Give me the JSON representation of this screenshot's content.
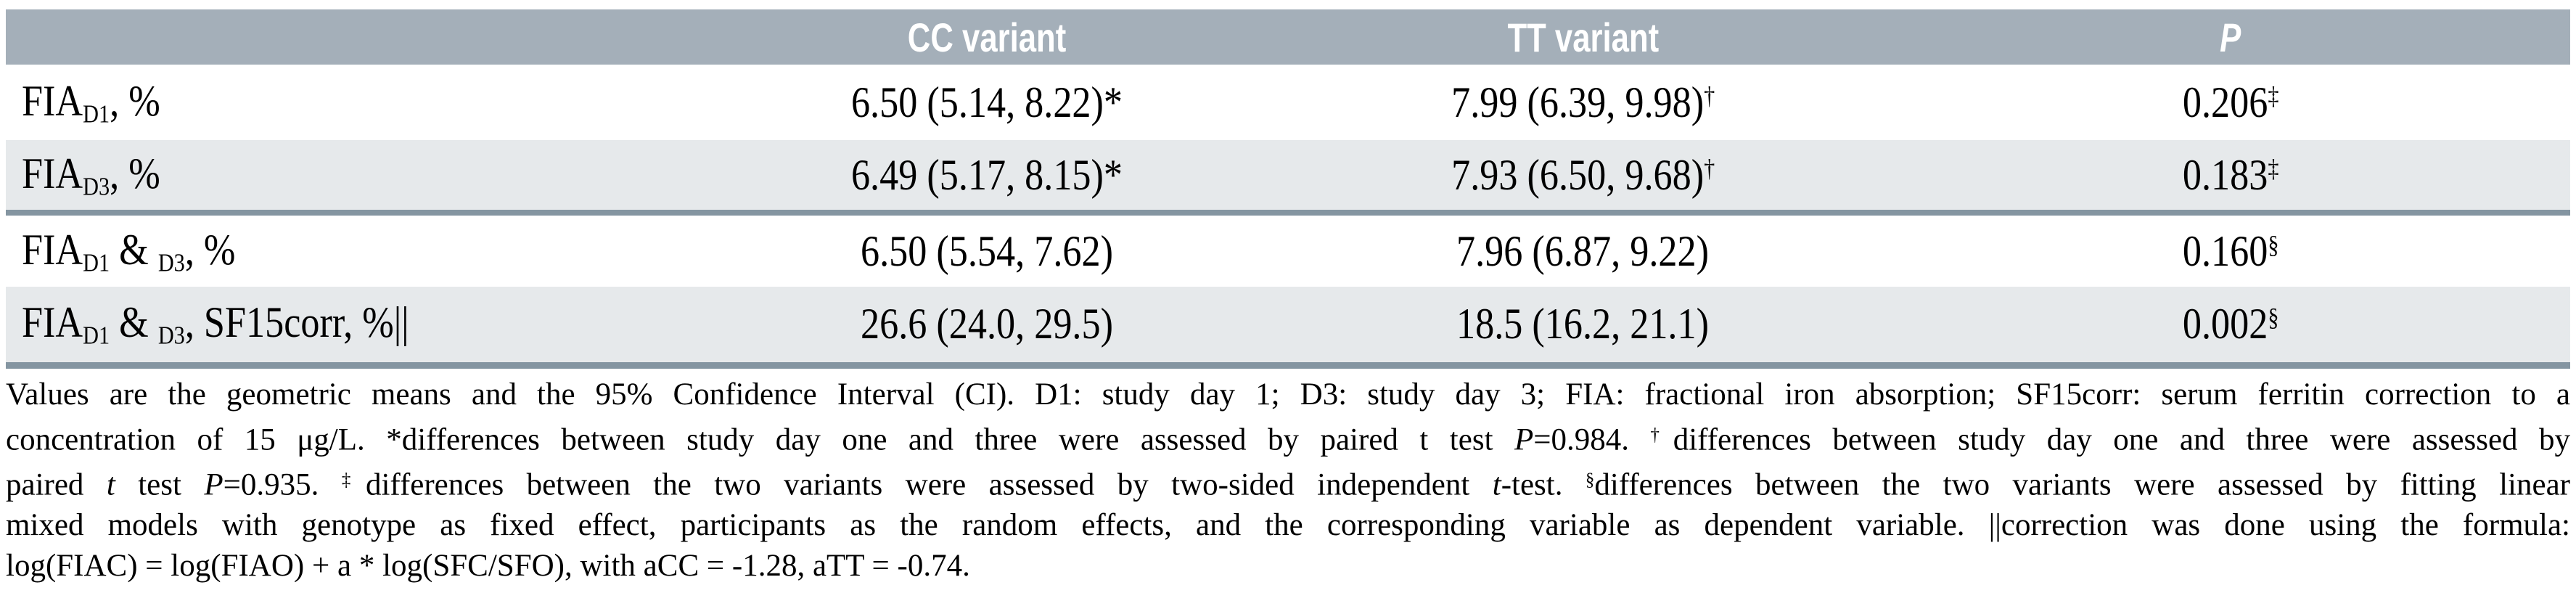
{
  "colors": {
    "header_bg": "#a4afb9",
    "row_alt_bg": "#e6e9eb",
    "separator_rule": "#8495a1",
    "header_text": "#ffffff",
    "body_text": "#000000"
  },
  "table": {
    "header": {
      "col0": "",
      "col1": "CC variant",
      "col2": "TT variant",
      "col3": "P"
    },
    "rows": [
      {
        "label": [
          {
            "t": "FIA"
          },
          {
            "t": "D1",
            "s": "sub"
          },
          {
            "t": ", %"
          }
        ],
        "cc": [
          {
            "t": "6.50 (5.14, 8.22)*"
          }
        ],
        "tt": [
          {
            "t": "7.99 (6.39, 9.98)"
          },
          {
            "t": "†",
            "s": "sup"
          }
        ],
        "p": [
          {
            "t": "0.206"
          },
          {
            "t": "‡",
            "s": "sup"
          }
        ]
      },
      {
        "label": [
          {
            "t": "FIA"
          },
          {
            "t": "D3",
            "s": "sub"
          },
          {
            "t": ", %"
          }
        ],
        "cc": [
          {
            "t": "6.49 (5.17, 8.15)*"
          }
        ],
        "tt": [
          {
            "t": "7.93 (6.50, 9.68)"
          },
          {
            "t": "†",
            "s": "sup"
          }
        ],
        "p": [
          {
            "t": "0.183"
          },
          {
            "t": "‡",
            "s": "sup"
          }
        ]
      },
      {
        "label": [
          {
            "t": "FIA"
          },
          {
            "t": "D1",
            "s": "sub"
          },
          {
            "t": " & "
          },
          {
            "t": "D3",
            "s": "sub"
          },
          {
            "t": ", %"
          }
        ],
        "cc": [
          {
            "t": "6.50 (5.54, 7.62)"
          }
        ],
        "tt": [
          {
            "t": "7.96 (6.87, 9.22)"
          }
        ],
        "p": [
          {
            "t": "0.160"
          },
          {
            "t": "§",
            "s": "sup"
          }
        ]
      },
      {
        "label": [
          {
            "t": "FIA"
          },
          {
            "t": "D1",
            "s": "sub"
          },
          {
            "t": " & "
          },
          {
            "t": "D3",
            "s": "sub"
          },
          {
            "t": ", SF15corr, %||"
          }
        ],
        "cc": [
          {
            "t": "26.6 (24.0, 29.5)"
          }
        ],
        "tt": [
          {
            "t": "18.5 (16.2, 21.1)"
          }
        ],
        "p": [
          {
            "t": "0.002"
          },
          {
            "t": "§",
            "s": "sup"
          }
        ]
      }
    ]
  },
  "footnote": {
    "lines": [
      [
        {
          "t": "Values are the geometric means and the 95% Confidence Interval (CI). D1: study day 1; D3: study day 3; FIA: fractional iron absorption; SF15corr: serum ferritin correction to a"
        }
      ],
      [
        {
          "t": "concentration of 15 μg/L. *differences between study day one and three were assessed by paired t test "
        },
        {
          "t": "P",
          "s": "i"
        },
        {
          "t": "=0.984. "
        },
        {
          "t": "†",
          "s": "sup"
        },
        {
          "t": "differences between study day one and three were assessed by"
        }
      ],
      [
        {
          "t": "paired "
        },
        {
          "t": "t",
          "s": "i"
        },
        {
          "t": " test "
        },
        {
          "t": "P",
          "s": "i"
        },
        {
          "t": "=0.935. "
        },
        {
          "t": "‡",
          "s": "sup"
        },
        {
          "t": "differences between the two variants were assessed by two-sided independent "
        },
        {
          "t": "t",
          "s": "i"
        },
        {
          "t": "-test. "
        },
        {
          "t": "§",
          "s": "sup"
        },
        {
          "t": "differences between the two variants were assessed by fitting linear"
        }
      ],
      [
        {
          "t": "mixed models with genotype as fixed effect, participants as the random effects, and the corresponding variable as dependent variable. ||correction was done using the formula:"
        }
      ],
      [
        {
          "t": "log(FIAC) = log(FIAO) + a * log(SFC/SFO), with aCC = -1.28, aTT = -0.74."
        }
      ]
    ]
  }
}
